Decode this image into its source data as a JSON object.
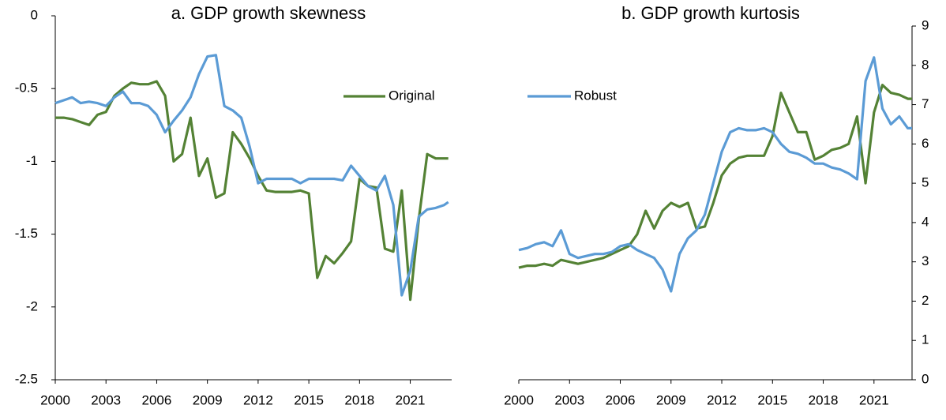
{
  "chart_data": [
    {
      "type": "line",
      "title": "a. GDP growth skewness",
      "x": [
        2000,
        2000.5,
        2001,
        2001.5,
        2002,
        2002.5,
        2003,
        2003.5,
        2004,
        2004.5,
        2005,
        2005.5,
        2006,
        2006.5,
        2007,
        2007.5,
        2008,
        2008.5,
        2009,
        2009.5,
        2010,
        2010.5,
        2011,
        2011.5,
        2012,
        2012.5,
        2013,
        2013.5,
        2014,
        2014.5,
        2015,
        2015.5,
        2016,
        2016.5,
        2017,
        2017.5,
        2018,
        2018.5,
        2019,
        2019.5,
        2020,
        2020.5,
        2021,
        2021.5,
        2022,
        2022.5,
        2023,
        2023.25
      ],
      "series": [
        {
          "name": "Original",
          "color": "#548235",
          "values": [
            -0.7,
            -0.7,
            -0.71,
            -0.73,
            -0.75,
            -0.68,
            -0.66,
            -0.55,
            -0.5,
            -0.46,
            -0.47,
            -0.47,
            -0.45,
            -0.55,
            -1.0,
            -0.95,
            -0.7,
            -1.1,
            -0.98,
            -1.25,
            -1.22,
            -0.8,
            -0.88,
            -0.98,
            -1.1,
            -1.2,
            -1.21,
            -1.21,
            -1.21,
            -1.2,
            -1.22,
            -1.8,
            -1.65,
            -1.7,
            -1.63,
            -1.55,
            -1.12,
            -1.17,
            -1.18,
            -1.6,
            -1.62,
            -1.2,
            -1.95,
            -1.4,
            -0.95,
            -0.98,
            -0.98,
            -0.98
          ]
        },
        {
          "name": "Robust",
          "color": "#5b9bd5",
          "values": [
            -0.6,
            -0.58,
            -0.56,
            -0.6,
            -0.59,
            -0.6,
            -0.62,
            -0.56,
            -0.52,
            -0.6,
            -0.6,
            -0.62,
            -0.68,
            -0.8,
            -0.72,
            -0.65,
            -0.56,
            -0.4,
            -0.28,
            -0.27,
            -0.62,
            -0.65,
            -0.7,
            -0.9,
            -1.15,
            -1.12,
            -1.12,
            -1.12,
            -1.12,
            -1.15,
            -1.12,
            -1.12,
            -1.12,
            -1.12,
            -1.13,
            -1.03,
            -1.1,
            -1.17,
            -1.2,
            -1.1,
            -1.3,
            -1.92,
            -1.75,
            -1.38,
            -1.33,
            -1.32,
            -1.3,
            -1.28
          ]
        }
      ],
      "legend_entries": [
        0
      ],
      "xlim": [
        2000,
        2023.45
      ],
      "xticks": [
        2000,
        2003,
        2006,
        2009,
        2012,
        2015,
        2018,
        2021
      ],
      "ylim": [
        -2.5,
        0
      ],
      "yticks": [
        0,
        -0.5,
        -1,
        -1.5,
        -2,
        -2.5
      ],
      "y_axis_side": "left"
    },
    {
      "type": "line",
      "title": "b. GDP growth kurtosis",
      "x": [
        2000,
        2000.5,
        2001,
        2001.5,
        2002,
        2002.5,
        2003,
        2003.5,
        2004,
        2004.5,
        2005,
        2005.5,
        2006,
        2006.5,
        2007,
        2007.5,
        2008,
        2008.5,
        2009,
        2009.5,
        2010,
        2010.5,
        2011,
        2011.5,
        2012,
        2012.5,
        2013,
        2013.5,
        2014,
        2014.5,
        2015,
        2015.5,
        2016,
        2016.5,
        2017,
        2017.5,
        2018,
        2018.5,
        2019,
        2019.5,
        2020,
        2020.5,
        2021,
        2021.5,
        2022,
        2022.5,
        2023,
        2023.25
      ],
      "series": [
        {
          "name": "Original",
          "color": "#548235",
          "values": [
            2.85,
            2.9,
            2.9,
            2.95,
            2.9,
            3.05,
            3.0,
            2.95,
            3.0,
            3.05,
            3.1,
            3.2,
            3.3,
            3.4,
            3.7,
            4.3,
            3.85,
            4.3,
            4.5,
            4.4,
            4.5,
            3.85,
            3.9,
            4.5,
            5.2,
            5.5,
            5.65,
            5.7,
            5.7,
            5.7,
            6.2,
            7.3,
            6.8,
            6.3,
            6.3,
            5.6,
            5.7,
            5.85,
            5.9,
            6.0,
            6.7,
            5.0,
            6.8,
            7.5,
            7.3,
            7.25,
            7.15,
            7.15
          ]
        },
        {
          "name": "Robust",
          "color": "#5b9bd5",
          "values": [
            3.3,
            3.35,
            3.45,
            3.5,
            3.4,
            3.8,
            3.2,
            3.1,
            3.15,
            3.2,
            3.2,
            3.25,
            3.4,
            3.45,
            3.3,
            3.2,
            3.1,
            2.8,
            2.25,
            3.2,
            3.6,
            3.8,
            4.2,
            5.0,
            5.8,
            6.3,
            6.4,
            6.35,
            6.35,
            6.4,
            6.3,
            6.0,
            5.8,
            5.75,
            5.65,
            5.5,
            5.5,
            5.4,
            5.35,
            5.25,
            5.1,
            7.6,
            8.2,
            6.9,
            6.5,
            6.7,
            6.4,
            6.4
          ]
        }
      ],
      "legend_entries": [
        1
      ],
      "xlim": [
        2000,
        2023.25
      ],
      "xticks": [
        2000,
        2003,
        2006,
        2009,
        2012,
        2015,
        2018,
        2021
      ],
      "ylim": [
        0,
        9
      ],
      "yticks": [
        0,
        1,
        2,
        3,
        4,
        5,
        6,
        7,
        8,
        9
      ],
      "y_axis_side": "right"
    }
  ]
}
